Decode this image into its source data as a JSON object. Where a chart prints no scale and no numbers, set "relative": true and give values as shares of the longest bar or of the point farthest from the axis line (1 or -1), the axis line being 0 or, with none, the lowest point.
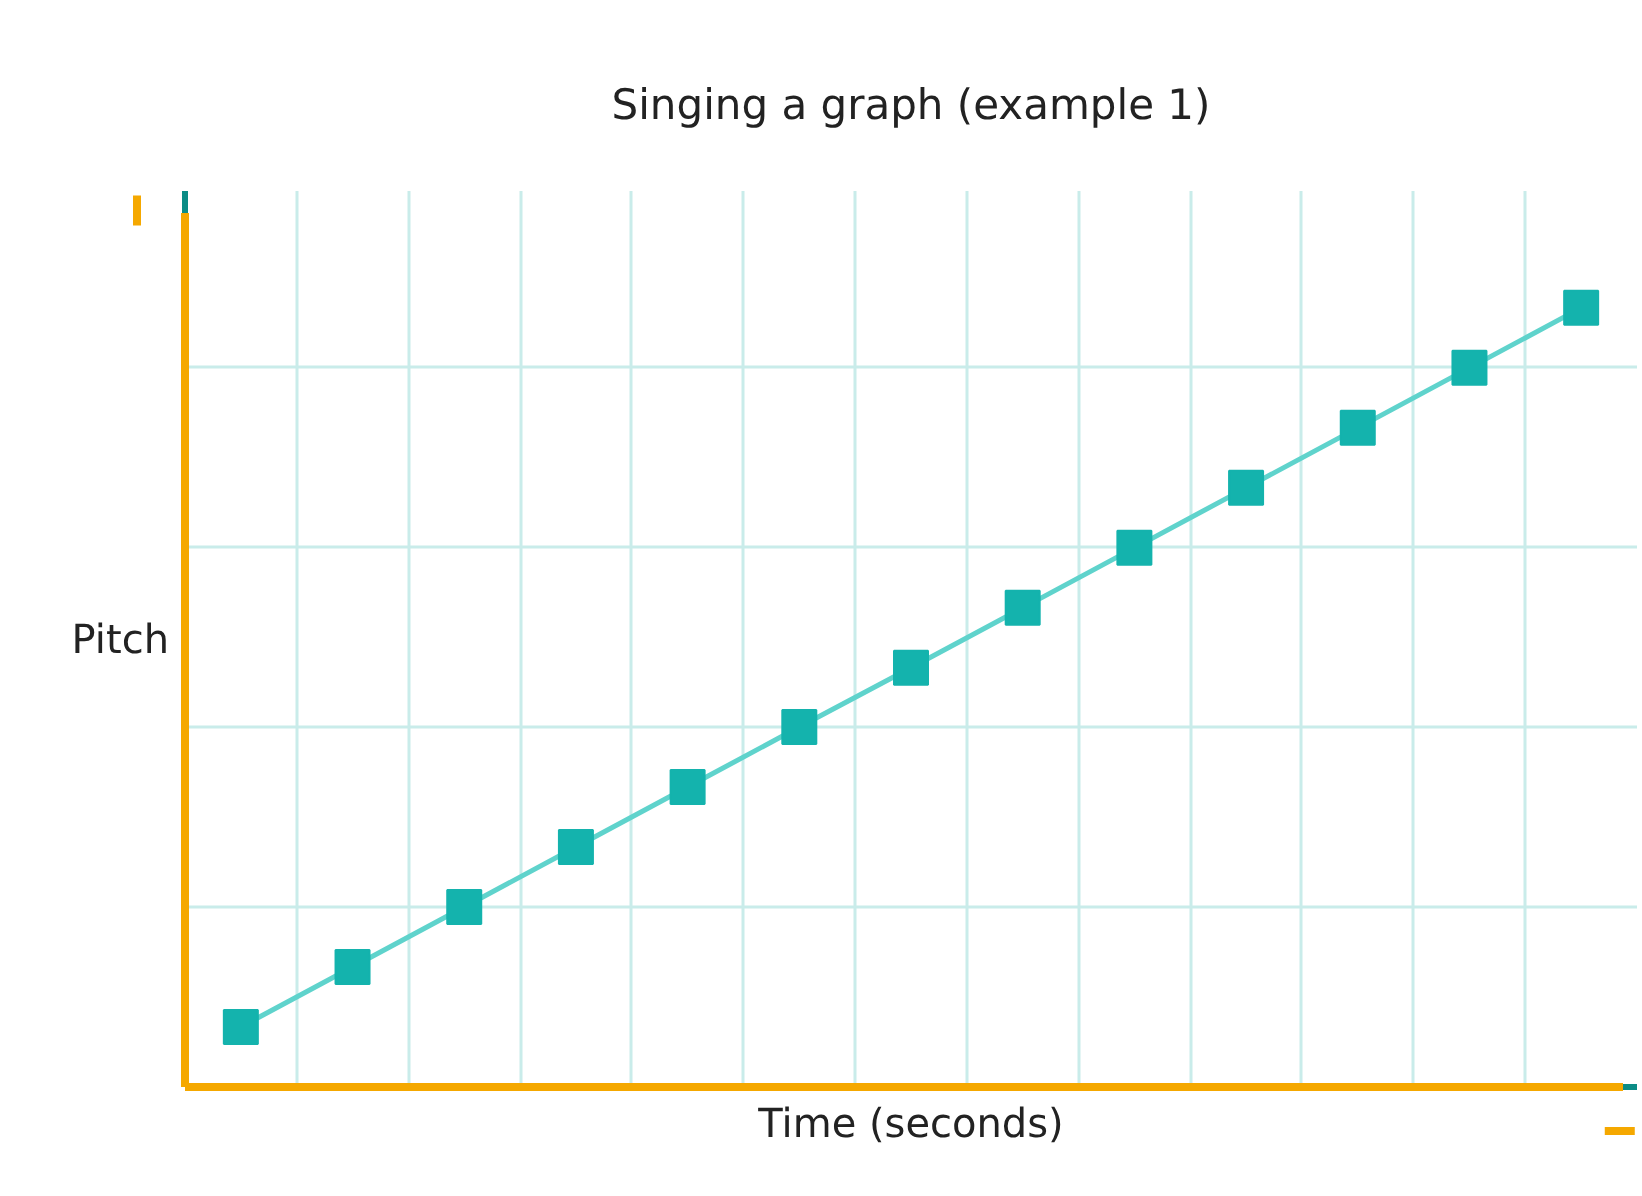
{
  "chart_data": {
    "type": "line",
    "title": "Singing a graph (example 1)",
    "xlabel": "Time (seconds)",
    "ylabel": "Pitch",
    "relative": true,
    "grid": true,
    "marker": "square",
    "line_style": "solid",
    "categories": [
      null,
      null,
      null,
      null,
      null,
      null,
      null,
      null,
      null,
      null,
      null,
      null,
      null
    ],
    "series": [
      {
        "color": "#5fd3cc",
        "values": [
          0.077,
          0.154,
          0.231,
          0.308,
          0.385,
          0.462,
          0.538,
          0.615,
          0.692,
          0.769,
          0.846,
          0.923,
          1.0
        ],
        "colors": [
          "#14b3ad",
          "#14b3ad",
          "#14b3ad",
          "#14b3ad",
          "#14b3ad",
          "#14b3ad",
          "#14b3ad",
          "#14b3ad",
          "#14b3ad",
          "#14b3ad",
          "#14b3ad",
          "#14b3ad",
          "#14b3ad"
        ]
      }
    ]
  }
}
